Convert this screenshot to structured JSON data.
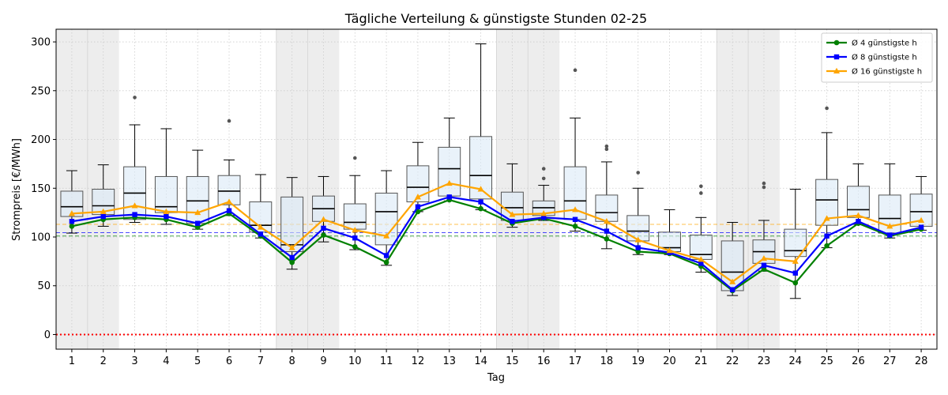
{
  "chart_data": {
    "type": "box",
    "title": "Tägliche Verteilung & günstigste Stunden 02-25",
    "xlabel": "Tag",
    "ylabel": "Strompreis [€/MWh]",
    "ylim": [
      -15,
      313
    ],
    "yticks": [
      0,
      50,
      100,
      150,
      200,
      250,
      300
    ],
    "days": [
      1,
      2,
      3,
      4,
      5,
      6,
      7,
      8,
      9,
      10,
      11,
      12,
      13,
      14,
      15,
      16,
      17,
      18,
      19,
      20,
      21,
      22,
      23,
      24,
      25,
      26,
      27,
      28
    ],
    "weekend_days": [
      1,
      2,
      8,
      9,
      15,
      16,
      22,
      23
    ],
    "legend_position": "upper right",
    "grid": "dotted",
    "boxes": [
      {
        "day": 1,
        "min": 104,
        "q1": 121,
        "median": 131,
        "q3": 147,
        "max": 168,
        "outliers": []
      },
      {
        "day": 2,
        "min": 111,
        "q1": 123,
        "median": 132,
        "q3": 149,
        "max": 174,
        "outliers": []
      },
      {
        "day": 3,
        "min": 115,
        "q1": 118,
        "median": 145,
        "q3": 172,
        "max": 215,
        "outliers": [
          243
        ]
      },
      {
        "day": 4,
        "min": 113,
        "q1": 125,
        "median": 131,
        "q3": 162,
        "max": 211,
        "outliers": []
      },
      {
        "day": 5,
        "min": 108,
        "q1": 114,
        "median": 137,
        "q3": 162,
        "max": 189,
        "outliers": []
      },
      {
        "day": 6,
        "min": 122,
        "q1": 133,
        "median": 147,
        "q3": 163,
        "max": 179,
        "outliers": [
          219
        ]
      },
      {
        "day": 7,
        "min": 99,
        "q1": 105,
        "median": 112,
        "q3": 136,
        "max": 164,
        "outliers": []
      },
      {
        "day": 8,
        "min": 67,
        "q1": 85,
        "median": 92,
        "q3": 141,
        "max": 161,
        "outliers": []
      },
      {
        "day": 9,
        "min": 95,
        "q1": 116,
        "median": 129,
        "q3": 142,
        "max": 162,
        "outliers": []
      },
      {
        "day": 10,
        "min": 87,
        "q1": 108,
        "median": 115,
        "q3": 134,
        "max": 163,
        "outliers": [
          181
        ]
      },
      {
        "day": 11,
        "min": 71,
        "q1": 92,
        "median": 126,
        "q3": 145,
        "max": 168,
        "outliers": []
      },
      {
        "day": 12,
        "min": 126,
        "q1": 136,
        "median": 151,
        "q3": 173,
        "max": 197,
        "outliers": []
      },
      {
        "day": 13,
        "min": 137,
        "q1": 142,
        "median": 170,
        "q3": 192,
        "max": 222,
        "outliers": []
      },
      {
        "day": 14,
        "min": 128,
        "q1": 139,
        "median": 163,
        "q3": 203,
        "max": 298,
        "outliers": []
      },
      {
        "day": 15,
        "min": 110,
        "q1": 117,
        "median": 130,
        "q3": 146,
        "max": 175,
        "outliers": []
      },
      {
        "day": 16,
        "min": 117,
        "q1": 122,
        "median": 130,
        "q3": 137,
        "max": 153,
        "outliers": [
          160,
          170
        ]
      },
      {
        "day": 17,
        "min": 106,
        "q1": 118,
        "median": 137,
        "q3": 172,
        "max": 222,
        "outliers": [
          271
        ]
      },
      {
        "day": 18,
        "min": 88,
        "q1": 116,
        "median": 125,
        "q3": 143,
        "max": 177,
        "outliers": [
          190,
          193
        ]
      },
      {
        "day": 19,
        "min": 82,
        "q1": 96,
        "median": 106,
        "q3": 122,
        "max": 150,
        "outliers": [
          166
        ]
      },
      {
        "day": 20,
        "min": 82,
        "q1": 85,
        "median": 89,
        "q3": 105,
        "max": 128,
        "outliers": []
      },
      {
        "day": 21,
        "min": 64,
        "q1": 77,
        "median": 82,
        "q3": 102,
        "max": 120,
        "outliers": [
          145,
          152
        ]
      },
      {
        "day": 22,
        "min": 40,
        "q1": 45,
        "median": 64,
        "q3": 96,
        "max": 115,
        "outliers": []
      },
      {
        "day": 23,
        "min": 65,
        "q1": 73,
        "median": 85,
        "q3": 97,
        "max": 117,
        "outliers": [
          151,
          155
        ]
      },
      {
        "day": 24,
        "min": 37,
        "q1": 80,
        "median": 86,
        "q3": 108,
        "max": 149,
        "outliers": []
      },
      {
        "day": 25,
        "min": 89,
        "q1": 112,
        "median": 138,
        "q3": 159,
        "max": 207,
        "outliers": [
          232
        ]
      },
      {
        "day": 26,
        "min": 113,
        "q1": 120,
        "median": 128,
        "q3": 152,
        "max": 175,
        "outliers": []
      },
      {
        "day": 27,
        "min": 99,
        "q1": 104,
        "median": 119,
        "q3": 143,
        "max": 175,
        "outliers": []
      },
      {
        "day": 28,
        "min": 107,
        "q1": 111,
        "median": 126,
        "q3": 144,
        "max": 162,
        "outliers": []
      }
    ],
    "series": [
      {
        "name": "Ø 4 günstigste h",
        "color": "#008000",
        "marker": "circle",
        "values": [
          111,
          118,
          120,
          118,
          110,
          124,
          101,
          74,
          102,
          90,
          74,
          126,
          138,
          129,
          114,
          119,
          111,
          98,
          85,
          83,
          70,
          45,
          67,
          53,
          91,
          114,
          101,
          108
        ]
      },
      {
        "name": "Ø 8 günstigste h",
        "color": "#0000ff",
        "marker": "square",
        "values": [
          116,
          121,
          123,
          121,
          114,
          127,
          103,
          79,
          109,
          99,
          81,
          131,
          141,
          136,
          116,
          120,
          118,
          106,
          89,
          84,
          73,
          46,
          71,
          63,
          101,
          116,
          102,
          110
        ]
      },
      {
        "name": "Ø 16 günstigste h",
        "color": "#ffa500",
        "marker": "triangle",
        "values": [
          124,
          126,
          132,
          126,
          125,
          136,
          110,
          89,
          118,
          107,
          101,
          141,
          155,
          149,
          123,
          124,
          128,
          116,
          97,
          86,
          77,
          54,
          78,
          75,
          119,
          122,
          111,
          117
        ]
      }
    ],
    "reference_lines": [
      {
        "value": 101,
        "color": "#008000",
        "style": "dashed"
      },
      {
        "value": 104.5,
        "color": "#0000ff",
        "style": "dashed"
      },
      {
        "value": 113,
        "color": "#ffa500",
        "style": "dashed"
      },
      {
        "value": 0,
        "color": "#ff0000",
        "style": "dotted"
      }
    ]
  }
}
